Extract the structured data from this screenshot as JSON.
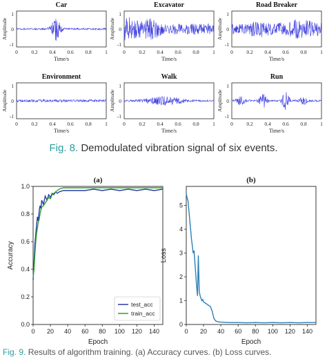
{
  "fig8": {
    "caption_label": "Fig. 8.",
    "caption_text": "Demodulated vibration signal of six events.",
    "panel_ylabel": "Amplitude",
    "panel_xlabel": "Time/s",
    "y_ticks": [
      "1",
      "0",
      "-1"
    ],
    "x_ticks": [
      "0",
      "0.2",
      "0.4",
      "0.6",
      "0.8",
      "1"
    ],
    "signal_color": "#3a3ae0"
  },
  "chart_data": [
    {
      "type": "line",
      "title": "Car",
      "xlabel": "Time/s",
      "ylabel": "Amplitude",
      "xlim": [
        0,
        1
      ],
      "ylim": [
        -1,
        1
      ],
      "series": [
        {
          "values_desc": "low noise ~0.05 amplitude, burst around t=0.45-0.5 reaching ~0.8"
        }
      ],
      "profile": {
        "base": 0.06,
        "bursts": [
          [
            0.44,
            0.05,
            0.75
          ]
        ]
      }
    },
    {
      "type": "line",
      "title": "Excavator",
      "xlabel": "Time/s",
      "ylabel": "Amplitude",
      "xlim": [
        0,
        1
      ],
      "ylim": [
        -1,
        1
      ],
      "profile": {
        "base": 0.35,
        "bursts": [
          [
            0.05,
            0.12,
            0.5
          ],
          [
            0.3,
            0.1,
            0.35
          ]
        ]
      }
    },
    {
      "type": "line",
      "title": "Road Breaker",
      "xlabel": "Time/s",
      "ylabel": "Amplitude",
      "xlim": [
        0,
        1
      ],
      "ylim": [
        -1,
        1
      ],
      "profile": {
        "base": 0.35,
        "bursts": [
          [
            0.3,
            0.1,
            0.2
          ],
          [
            0.75,
            0.2,
            0.3
          ]
        ]
      }
    },
    {
      "type": "line",
      "title": "Environment",
      "xlabel": "Time/s",
      "ylabel": "Amplitude",
      "xlim": [
        0,
        1
      ],
      "ylim": [
        -1,
        1
      ],
      "profile": {
        "base": 0.08,
        "bursts": []
      }
    },
    {
      "type": "line",
      "title": "Walk",
      "xlabel": "Time/s",
      "ylabel": "Amplitude",
      "xlim": [
        0,
        1
      ],
      "ylim": [
        -1,
        1
      ],
      "profile": {
        "base": 0.06,
        "bursts": [
          [
            0.45,
            0.2,
            0.25
          ]
        ]
      }
    },
    {
      "type": "line",
      "title": "Run",
      "xlabel": "Time/s",
      "ylabel": "Amplitude",
      "xlim": [
        0,
        1
      ],
      "ylim": [
        -1,
        1
      ],
      "profile": {
        "base": 0.06,
        "bursts": [
          [
            0.1,
            0.05,
            0.25
          ],
          [
            0.35,
            0.04,
            0.45
          ],
          [
            0.6,
            0.04,
            0.6
          ],
          [
            0.8,
            0.04,
            0.25
          ]
        ]
      }
    },
    {
      "type": "line",
      "title": "(a)",
      "xlabel": "Epoch",
      "ylabel": "Accuracy",
      "xlim": [
        0,
        150
      ],
      "ylim": [
        0,
        1.0
      ],
      "x_ticks": [
        0,
        20,
        40,
        60,
        80,
        100,
        120,
        140
      ],
      "y_ticks": [
        0.0,
        0.2,
        0.4,
        0.6,
        0.8,
        1.0
      ],
      "legend": "bottom-right",
      "series": [
        {
          "name": "test_acc",
          "color": "#2a3aa8",
          "x": [
            0,
            1,
            2,
            3,
            4,
            5,
            6,
            7,
            8,
            9,
            10,
            12,
            14,
            16,
            18,
            20,
            22,
            24,
            26,
            28,
            30,
            35,
            40,
            50,
            60,
            70,
            80,
            90,
            100,
            110,
            120,
            130,
            140,
            150
          ],
          "values": [
            0.32,
            0.45,
            0.58,
            0.65,
            0.72,
            0.78,
            0.75,
            0.82,
            0.86,
            0.84,
            0.9,
            0.87,
            0.93,
            0.9,
            0.94,
            0.92,
            0.95,
            0.94,
            0.96,
            0.95,
            0.96,
            0.97,
            0.97,
            0.97,
            0.97,
            0.98,
            0.97,
            0.98,
            0.97,
            0.98,
            0.97,
            0.98,
            0.97,
            0.98
          ]
        },
        {
          "name": "train_acc",
          "color": "#2aa02a",
          "x": [
            0,
            1,
            2,
            3,
            4,
            5,
            6,
            7,
            8,
            9,
            10,
            12,
            14,
            16,
            18,
            20,
            22,
            24,
            26,
            28,
            30,
            35,
            40,
            50,
            60,
            70,
            80,
            90,
            100,
            110,
            120,
            130,
            140,
            150
          ],
          "values": [
            0.34,
            0.4,
            0.5,
            0.6,
            0.66,
            0.7,
            0.74,
            0.76,
            0.8,
            0.83,
            0.85,
            0.86,
            0.88,
            0.9,
            0.92,
            0.91,
            0.94,
            0.95,
            0.96,
            0.97,
            0.98,
            0.99,
            0.99,
            0.99,
            0.99,
            0.99,
            0.99,
            0.99,
            0.99,
            0.99,
            0.99,
            0.99,
            0.99,
            0.99
          ]
        }
      ]
    },
    {
      "type": "line",
      "title": "(b)",
      "xlabel": "Epoch",
      "ylabel": "Loss",
      "xlim": [
        0,
        150
      ],
      "ylim": [
        0,
        5.8
      ],
      "x_ticks": [
        0,
        20,
        40,
        60,
        80,
        100,
        120,
        140
      ],
      "y_ticks": [
        0,
        1,
        2,
        3,
        4,
        5
      ],
      "series": [
        {
          "color": "#2a7fb8",
          "x": [
            0,
            1,
            2,
            3,
            4,
            5,
            6,
            7,
            8,
            9,
            10,
            11,
            12,
            13,
            14,
            15,
            16,
            17,
            18,
            19,
            20,
            22,
            24,
            26,
            28,
            30,
            32,
            34,
            36,
            40,
            50,
            60,
            70,
            80,
            90,
            100,
            110,
            120,
            130,
            140,
            150
          ],
          "values": [
            5.5,
            5.3,
            5.2,
            4.8,
            4.4,
            4.0,
            3.6,
            3.3,
            3.0,
            3.1,
            2.6,
            2.1,
            1.6,
            1.2,
            2.9,
            1.4,
            1.2,
            1.1,
            1.0,
            1.05,
            0.95,
            0.9,
            0.85,
            0.8,
            0.75,
            0.55,
            0.25,
            0.15,
            0.12,
            0.1,
            0.08,
            0.08,
            0.07,
            0.08,
            0.07,
            0.08,
            0.07,
            0.08,
            0.07,
            0.08,
            0.08
          ]
        }
      ]
    }
  ],
  "fig9": {
    "caption_label": "Fig. 9.",
    "caption_text": "Results of algorithm training. (a) Accuracy curves. (b) Loss curves."
  }
}
